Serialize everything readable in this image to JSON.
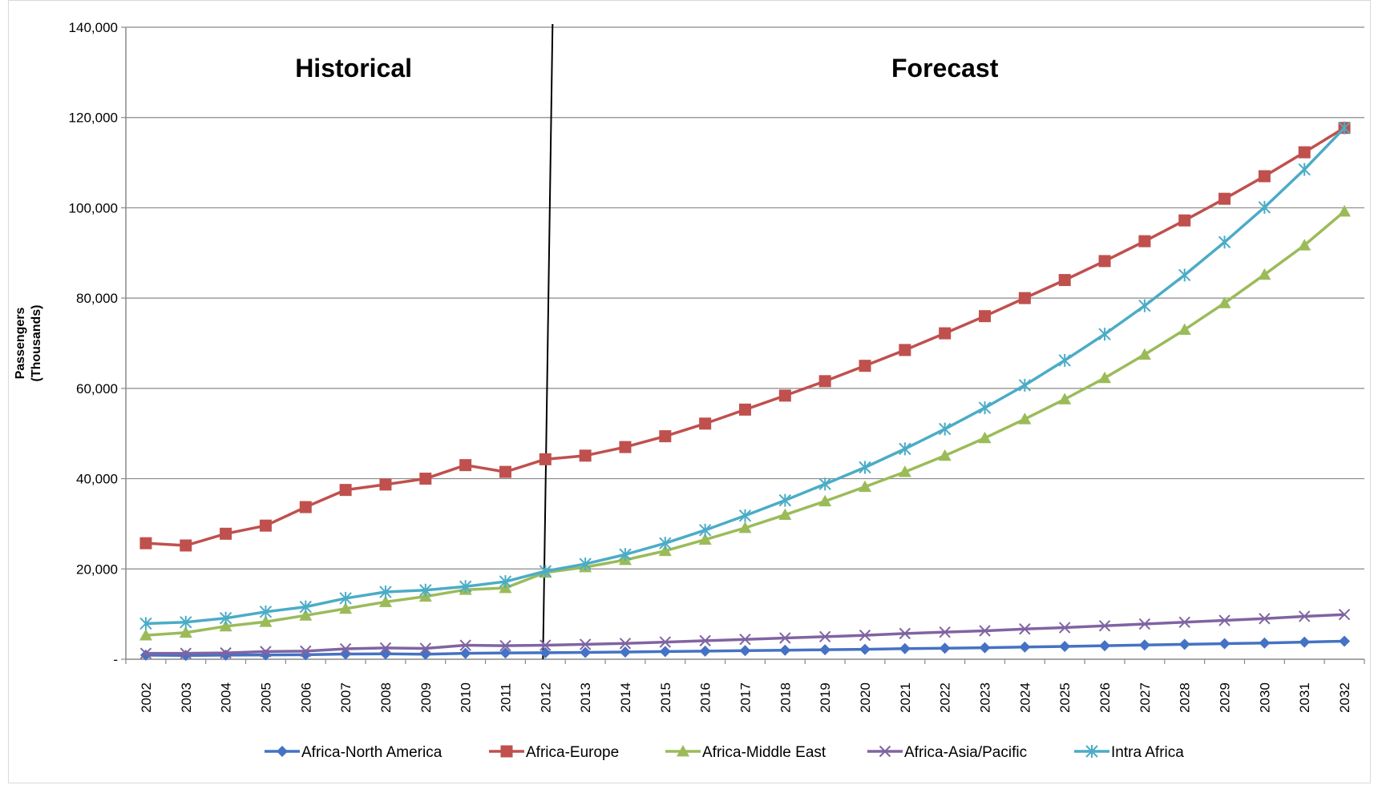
{
  "chart_data": {
    "type": "line",
    "title": "",
    "xlabel": "",
    "ylabel_lines": [
      "Passengers",
      "(Thousands)"
    ],
    "ylim": [
      0,
      140000
    ],
    "yticks": [
      0,
      20000,
      40000,
      60000,
      80000,
      100000,
      120000,
      140000
    ],
    "ytick_labels": [
      "-",
      "20,000",
      "40,000",
      "60,000",
      "80,000",
      "100,000",
      "120,000",
      "140,000"
    ],
    "grid": "horizontal",
    "legend_position": "bottom",
    "annotations": [
      {
        "text": "Historical",
        "x_from": 2002,
        "x_to": 2012
      },
      {
        "text": "Forecast",
        "x_from": 2012,
        "x_to": 2032
      }
    ],
    "divider_x": 2012,
    "x": [
      2002,
      2003,
      2004,
      2005,
      2006,
      2007,
      2008,
      2009,
      2010,
      2011,
      2012,
      2013,
      2014,
      2015,
      2016,
      2017,
      2018,
      2019,
      2020,
      2021,
      2022,
      2023,
      2024,
      2025,
      2026,
      2027,
      2028,
      2029,
      2030,
      2031,
      2032
    ],
    "series": [
      {
        "name": "Africa-North America",
        "color": "#4472c4",
        "marker": "diamond",
        "values": [
          900,
          850,
          900,
          950,
          1000,
          1150,
          1200,
          1100,
          1300,
          1400,
          1450,
          1500,
          1600,
          1700,
          1800,
          1900,
          2000,
          2100,
          2200,
          2350,
          2450,
          2550,
          2700,
          2850,
          3000,
          3150,
          3300,
          3450,
          3600,
          3800,
          4000
        ]
      },
      {
        "name": "Africa-Europe",
        "color": "#c0504d",
        "marker": "square",
        "values": [
          25700,
          25200,
          27800,
          29600,
          33700,
          37500,
          38700,
          40000,
          43000,
          41500,
          44300,
          45100,
          47000,
          49400,
          52200,
          55300,
          58400,
          61600,
          65000,
          68500,
          72200,
          76000,
          80000,
          84000,
          88200,
          92600,
          97200,
          102000,
          107000,
          112300,
          117700
        ]
      },
      {
        "name": "Africa-Middle East",
        "color": "#9bbb59",
        "marker": "triangle",
        "values": [
          5300,
          5900,
          7300,
          8300,
          9700,
          11200,
          12700,
          13900,
          15400,
          15800,
          19200,
          20400,
          22000,
          24000,
          26500,
          29100,
          32000,
          35000,
          38200,
          41500,
          45100,
          49000,
          53200,
          57600,
          62300,
          67500,
          73000,
          78900,
          85200,
          91700,
          99200
        ]
      },
      {
        "name": "Africa-Asia/Pacific",
        "color": "#8064a2",
        "marker": "x",
        "values": [
          1300,
          1300,
          1400,
          1700,
          1800,
          2300,
          2500,
          2400,
          3100,
          3000,
          3100,
          3300,
          3500,
          3800,
          4100,
          4400,
          4700,
          5000,
          5300,
          5700,
          6000,
          6300,
          6700,
          7000,
          7400,
          7800,
          8200,
          8600,
          9000,
          9500,
          9900
        ]
      },
      {
        "name": "Intra Africa",
        "color": "#4bacc6",
        "marker": "star",
        "values": [
          7900,
          8200,
          9100,
          10500,
          11600,
          13500,
          14900,
          15300,
          16100,
          17200,
          19500,
          21100,
          23200,
          25700,
          28600,
          31800,
          35200,
          38800,
          42500,
          46600,
          51000,
          55700,
          60700,
          66200,
          72000,
          78300,
          85100,
          92400,
          100100,
          108500,
          117700
        ]
      }
    ]
  }
}
